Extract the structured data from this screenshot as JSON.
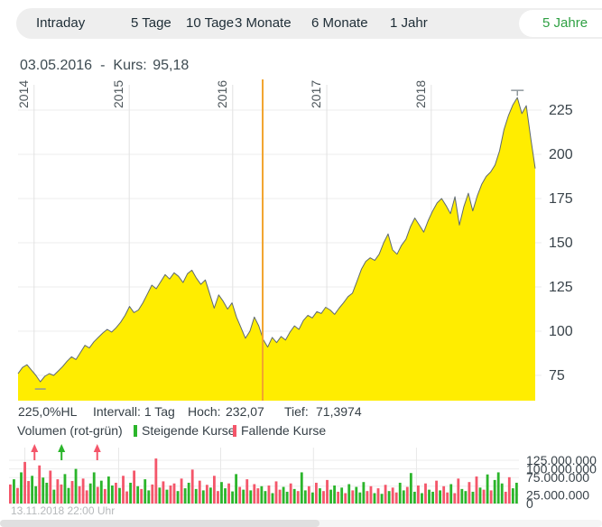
{
  "tabs": {
    "items": [
      "Intraday",
      "5 Tage",
      "10 Tage",
      "3 Monate",
      "6 Monate",
      "1 Jahr"
    ],
    "selected": "5 Jahre",
    "selected_color": "#2fa043"
  },
  "header": {
    "date": "03.05.2016",
    "dash": "-",
    "kurs_label": "Kurs:",
    "kurs_value": "95,18"
  },
  "stats": {
    "range_pct": "225,0%HL",
    "interval_label": "Intervall:",
    "interval_value": "1 Tag",
    "high_label": "Hoch:",
    "high_value": "232,07",
    "low_label": "Tief:",
    "low_value": "71,3974"
  },
  "legend": {
    "volume_label": "Volumen (rot-grün)",
    "up_label": "Steigende Kurse",
    "down_label": "Fallende Kurse"
  },
  "footer": {
    "timestamp": "13.11.2018 22:00 Uhr"
  },
  "colors": {
    "tabbar_bg": "#eeeeee",
    "accent_green": "#2fa043",
    "chart_yellow": "#ffed00",
    "price_line": "#5f6a70",
    "marker_orange": "#f2a42e",
    "volume_green": "#2bb52b",
    "volume_red": "#f4566a",
    "gridline": "#ececec"
  },
  "chart_data": [
    {
      "type": "area",
      "name": "Kurs 5 Jahre",
      "title": "03.05.2016 - Kurs: 95,18",
      "xlabel": "",
      "ylabel": "",
      "grid_on": true,
      "legend_position": "none",
      "ylim": [
        60,
        240
      ],
      "yticks": [
        225,
        200,
        175,
        150,
        125,
        100,
        75
      ],
      "years": [
        "2014",
        "2015",
        "2016",
        "2017",
        "2018"
      ],
      "year_fracs": [
        0.031,
        0.215,
        0.415,
        0.597,
        0.799
      ],
      "marker_x_frac": 0.473,
      "marker_date": "03.05.2016",
      "marker_value": 95.18,
      "high": 232.07,
      "low": 71.3974,
      "area_color": "#ffed00",
      "line_color": "#5f6a70",
      "marker_color": "#f2a42e",
      "values": [
        76,
        79.5,
        81,
        78,
        75,
        71.4,
        74.5,
        76,
        75,
        77.5,
        80,
        83,
        85.5,
        84,
        88,
        92,
        90.5,
        94,
        96.5,
        99,
        101,
        99.5,
        102,
        105,
        109,
        114,
        110.5,
        112,
        116,
        121,
        126,
        124,
        128,
        132,
        129.5,
        133,
        131,
        127.5,
        132.5,
        134.5,
        130,
        126.5,
        129,
        121,
        113,
        120.5,
        117,
        112.5,
        116,
        108,
        102,
        96,
        100,
        108,
        103,
        95.2,
        91,
        96.5,
        93.5,
        97,
        95,
        99.5,
        103,
        101,
        106,
        109,
        107.5,
        111,
        110,
        113.5,
        112,
        109.5,
        113,
        116,
        119.5,
        121.5,
        128,
        135,
        139.5,
        141.5,
        140,
        143.5,
        150,
        155,
        146,
        143.5,
        148.5,
        152,
        159,
        164,
        160,
        156,
        162.5,
        168,
        172.5,
        175,
        171,
        166.5,
        176,
        160,
        170.5,
        178,
        168,
        176.5,
        183,
        187.5,
        190,
        194,
        202,
        214,
        222,
        228,
        232.07,
        223,
        227.5,
        209,
        192
      ]
    },
    {
      "type": "bar",
      "name": "Volumen",
      "ylim_millions": [
        0,
        137
      ],
      "grid_values": [
        0,
        25,
        50,
        75,
        100,
        125
      ],
      "yticks": [
        {
          "value": 125,
          "label": "125.000.000"
        },
        {
          "value": 100,
          "label": "100.000.000"
        },
        {
          "value": 75,
          "label": "75.000.000"
        },
        {
          "value": 25,
          "label": "25.000.000"
        },
        {
          "value": 0,
          "label": "0"
        }
      ],
      "year_fracs": [
        0.031,
        0.215,
        0.415,
        0.597,
        0.799
      ],
      "color_map": {
        "g": "#2bb52b",
        "r": "#f4566a"
      },
      "bar_colors": "rgrgrrggrggrgrrggrgrrrggrgrggrgrrgrgrggrrgrgrrgrggrgrgrgrrggrggrgrgrrggrgrrggrgrggrgrgrrggrgrgrgggrrgrgrgrrggrggrgrggrgrrgrrggrgrgrgrgggrrgg",
      "values_millions": [
        55,
        70,
        45,
        90,
        120,
        65,
        80,
        50,
        110,
        75,
        60,
        95,
        40,
        70,
        55,
        85,
        45,
        65,
        100,
        50,
        72,
        38,
        58,
        90,
        48,
        66,
        42,
        78,
        52,
        60,
        45,
        80,
        35,
        60,
        95,
        50,
        42,
        70,
        38,
        55,
        130,
        46,
        64,
        40,
        52,
        58,
        36,
        72,
        44,
        60,
        98,
        42,
        66,
        38,
        54,
        46,
        80,
        36,
        62,
        44,
        58,
        35,
        85,
        48,
        40,
        70,
        38,
        56,
        44,
        50,
        36,
        52,
        30,
        64,
        40,
        48,
        34,
        58,
        42,
        36,
        90,
        38,
        50,
        32,
        60,
        44,
        36,
        68,
        40,
        52,
        34,
        46,
        30,
        56,
        38,
        48,
        32,
        62,
        36,
        50,
        30,
        44,
        28,
        54,
        36,
        46,
        32,
        60,
        38,
        48,
        88,
        34,
        52,
        30,
        58,
        40,
        34,
        66,
        38,
        50,
        32,
        56,
        30,
        72,
        42,
        36,
        62,
        34,
        78,
        46,
        40,
        84,
        38,
        68,
        90,
        58,
        34,
        76,
        44,
        60
      ],
      "arrows": [
        {
          "x_frac": 0.05,
          "color": "red"
        },
        {
          "x_frac": 0.103,
          "color": "green"
        },
        {
          "x_frac": 0.173,
          "color": "red"
        }
      ]
    }
  ]
}
